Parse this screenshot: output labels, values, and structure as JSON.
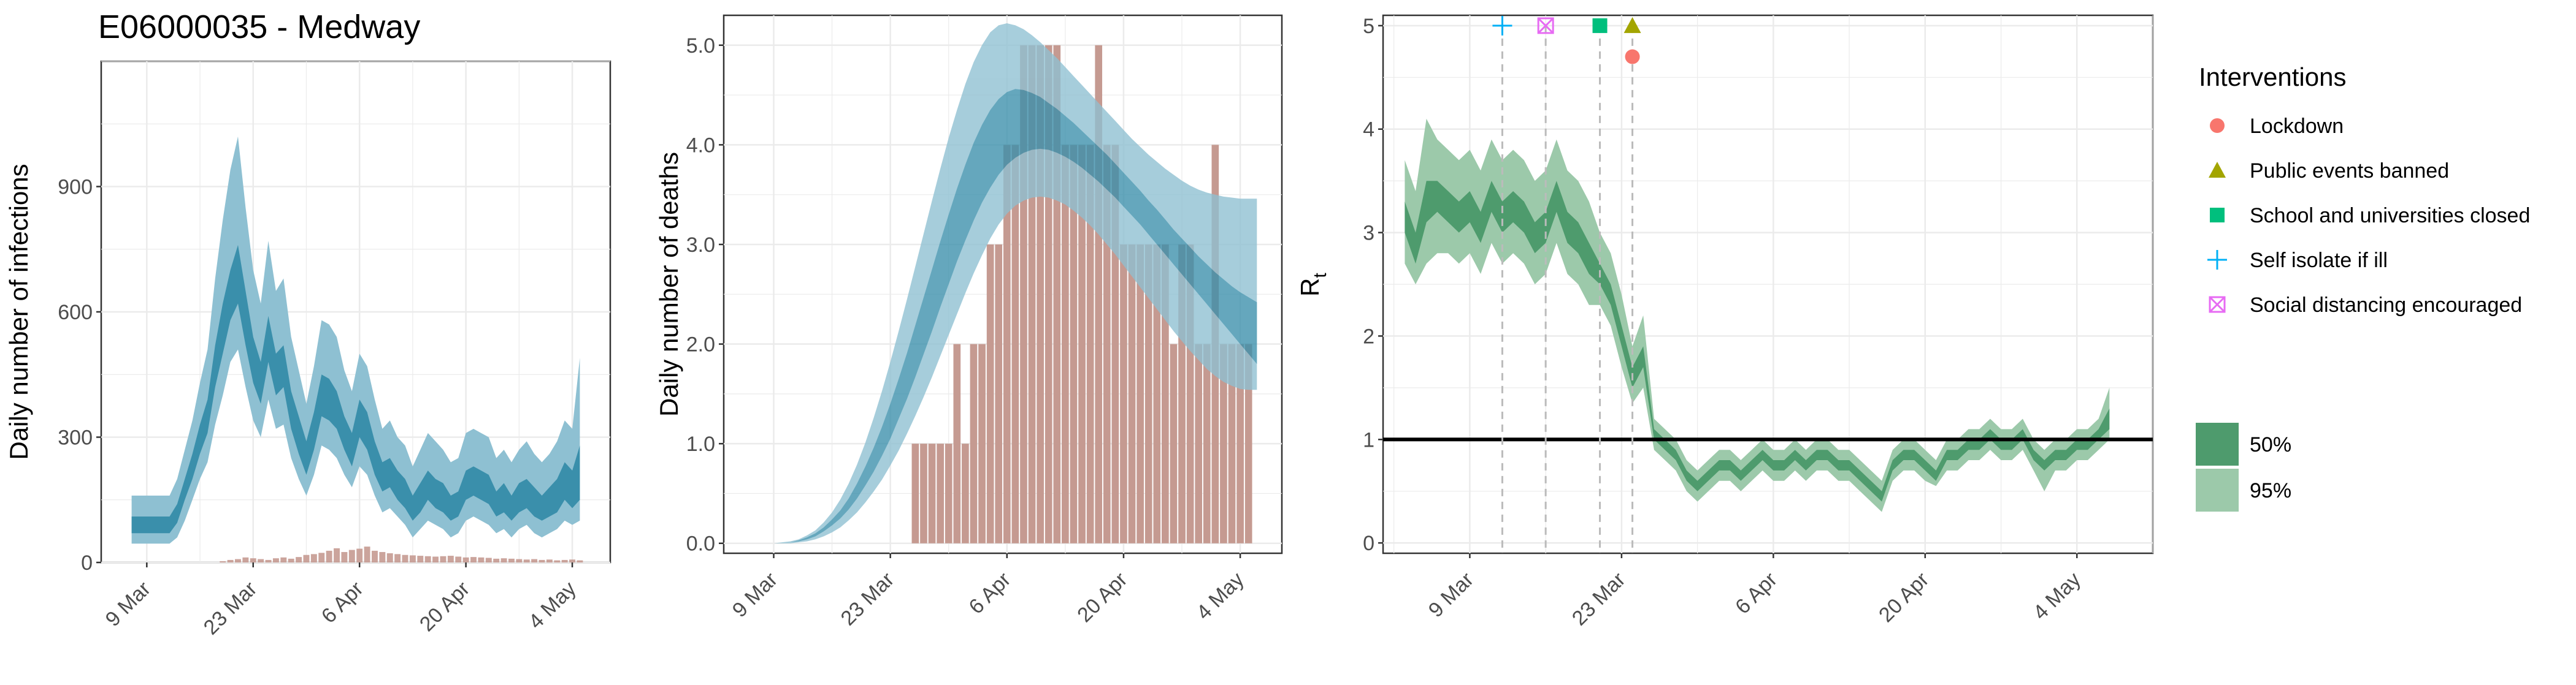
{
  "title": "E06000035 - Medway",
  "colors": {
    "infection_50": "#3a8fab",
    "infection_95": "#8ec0d2",
    "deaths_bar": "#c59a91",
    "rt_50": "#4e9b6d",
    "rt_95": "#9cc9aa",
    "lockdown": "#f8766d",
    "public_events": "#a3a500",
    "school": "#00bf7d",
    "self_isolate": "#00b0f6",
    "social_distancing": "#e76bf3"
  },
  "legend": {
    "title": "Interventions",
    "items": [
      {
        "label": "Lockdown",
        "shape": "circle",
        "color": "#f8766d"
      },
      {
        "label": "Public events banned",
        "shape": "triangle",
        "color": "#a3a500"
      },
      {
        "label": "School and universities closed",
        "shape": "square",
        "color": "#00bf7d"
      },
      {
        "label": "Self isolate if ill",
        "shape": "plus",
        "color": "#00b0f6"
      },
      {
        "label": "Social distancing encouraged",
        "shape": "boxx",
        "color": "#e76bf3"
      }
    ],
    "ci_items": [
      {
        "label": "50%",
        "color": "#4e9b6d"
      },
      {
        "label": "95%",
        "color": "#9cc9aa"
      }
    ]
  },
  "chart_data": [
    {
      "type": "area",
      "ylabel": "Daily number of infections",
      "xlabel": "",
      "xlim": [
        "2020-03-03",
        "2020-05-09"
      ],
      "ylim": [
        0,
        1200
      ],
      "x_ticks": [
        "2020-03-09",
        "2020-03-23",
        "2020-04-06",
        "2020-04-20",
        "2020-05-04"
      ],
      "x_tick_labels": [
        "9 Mar",
        "23 Mar",
        "6 Apr",
        "20 Apr",
        "4 May"
      ],
      "y_ticks": [
        0,
        300,
        600,
        900
      ],
      "y_tick_labels": [
        "0",
        "300",
        "600",
        "900"
      ],
      "start_date": "2020-03-07",
      "bands": {
        "p50_low": [
          70,
          70,
          70,
          70,
          70,
          70,
          95,
          150,
          200,
          260,
          310,
          420,
          500,
          580,
          620,
          520,
          430,
          380,
          480,
          400,
          420,
          320,
          260,
          210,
          270,
          350,
          340,
          320,
          270,
          230,
          300,
          270,
          210,
          170,
          180,
          150,
          130,
          100,
          120,
          150,
          130,
          120,
          100,
          110,
          150,
          160,
          150,
          140,
          110,
          120,
          100,
          120,
          130,
          110,
          100,
          110,
          120,
          150,
          130,
          150
        ],
        "p50_high": [
          110,
          110,
          110,
          110,
          110,
          110,
          140,
          200,
          260,
          330,
          390,
          520,
          620,
          700,
          760,
          650,
          540,
          480,
          590,
          500,
          520,
          410,
          350,
          290,
          360,
          450,
          440,
          410,
          350,
          310,
          390,
          360,
          290,
          240,
          250,
          220,
          200,
          160,
          190,
          220,
          200,
          190,
          160,
          170,
          220,
          230,
          220,
          210,
          170,
          190,
          160,
          190,
          200,
          180,
          160,
          180,
          200,
          240,
          220,
          280
        ],
        "p95_low": [
          45,
          45,
          45,
          45,
          45,
          45,
          60,
          100,
          150,
          200,
          240,
          330,
          400,
          480,
          510,
          420,
          340,
          300,
          390,
          320,
          330,
          250,
          200,
          160,
          210,
          280,
          270,
          250,
          210,
          180,
          230,
          210,
          160,
          120,
          130,
          110,
          90,
          60,
          80,
          100,
          90,
          80,
          60,
          70,
          100,
          110,
          100,
          90,
          70,
          80,
          60,
          80,
          90,
          70,
          60,
          70,
          80,
          100,
          90,
          100
        ],
        "p95_high": [
          160,
          160,
          160,
          160,
          160,
          160,
          200,
          270,
          340,
          430,
          510,
          680,
          820,
          940,
          1020,
          850,
          700,
          620,
          770,
          650,
          680,
          540,
          460,
          380,
          470,
          580,
          570,
          540,
          460,
          410,
          500,
          470,
          390,
          320,
          340,
          300,
          280,
          230,
          270,
          310,
          290,
          270,
          240,
          250,
          310,
          320,
          310,
          300,
          250,
          270,
          240,
          270,
          290,
          260,
          240,
          260,
          290,
          340,
          320,
          490
        ]
      },
      "observed_cases": {
        "start_date": "2020-03-07",
        "values": [
          0,
          0,
          0,
          0,
          0,
          0,
          0,
          0,
          0,
          0,
          0,
          0,
          3,
          6,
          8,
          12,
          10,
          8,
          6,
          10,
          12,
          9,
          13,
          18,
          20,
          23,
          28,
          34,
          25,
          30,
          33,
          38,
          28,
          25,
          22,
          20,
          18,
          17,
          16,
          15,
          14,
          15,
          16,
          14,
          12,
          13,
          12,
          11,
          9,
          10,
          9,
          8,
          7,
          8,
          6,
          7,
          5,
          6,
          7,
          5
        ]
      }
    },
    {
      "type": "bar",
      "ylabel": "Daily number of deaths",
      "xlabel": "",
      "xlim": [
        "2020-03-03",
        "2020-05-09"
      ],
      "ylim": [
        -0.1,
        5.3
      ],
      "x_ticks": [
        "2020-03-09",
        "2020-03-23",
        "2020-04-06",
        "2020-04-20",
        "2020-05-04"
      ],
      "x_tick_labels": [
        "9 Mar",
        "23 Mar",
        "6 Apr",
        "20 Apr",
        "4 May"
      ],
      "y_ticks": [
        0,
        1,
        2,
        3,
        4,
        5
      ],
      "y_tick_labels": [
        "0.0",
        "1.0",
        "2.0",
        "3.0",
        "4.0",
        "5.0"
      ],
      "observed_deaths": {
        "start_date": "2020-03-26",
        "values": [
          1,
          1,
          1,
          1,
          1,
          2,
          1,
          2,
          2,
          3,
          3,
          4,
          4,
          5,
          5,
          5,
          5,
          5,
          4,
          4,
          4,
          4,
          5,
          4,
          4,
          3,
          3,
          3,
          3,
          3,
          3,
          2,
          3,
          3,
          2,
          2,
          4,
          2,
          2,
          2,
          2
        ]
      },
      "bands": {
        "start_date": "2020-03-09",
        "p50_low": [
          0.0,
          0.0,
          0.01,
          0.02,
          0.04,
          0.07,
          0.12,
          0.18,
          0.25,
          0.34,
          0.45,
          0.58,
          0.72,
          0.88,
          1.05,
          1.25,
          1.45,
          1.67,
          1.9,
          2.13,
          2.37,
          2.6,
          2.83,
          3.04,
          3.24,
          3.42,
          3.57,
          3.7,
          3.8,
          3.87,
          3.92,
          3.95,
          3.96,
          3.95,
          3.92,
          3.88,
          3.83,
          3.77,
          3.7,
          3.63,
          3.55,
          3.47,
          3.38,
          3.29,
          3.2,
          3.1,
          3.0,
          2.9,
          2.8,
          2.7,
          2.6,
          2.5,
          2.4,
          2.3,
          2.2,
          2.1,
          2.0,
          1.9,
          1.8
        ],
        "p50_high": [
          0.0,
          0.0,
          0.01,
          0.03,
          0.06,
          0.1,
          0.16,
          0.24,
          0.33,
          0.45,
          0.6,
          0.77,
          0.96,
          1.17,
          1.4,
          1.65,
          1.91,
          2.19,
          2.47,
          2.75,
          3.03,
          3.3,
          3.56,
          3.8,
          4.02,
          4.2,
          4.35,
          4.46,
          4.53,
          4.56,
          4.55,
          4.52,
          4.48,
          4.42,
          4.36,
          4.29,
          4.22,
          4.14,
          4.06,
          3.98,
          3.9,
          3.81,
          3.72,
          3.63,
          3.54,
          3.44,
          3.35,
          3.25,
          3.15,
          3.06,
          2.97,
          2.88,
          2.8,
          2.72,
          2.65,
          2.58,
          2.52,
          2.47,
          2.42
        ],
        "p95_low": [
          0.0,
          0.0,
          0.0,
          0.01,
          0.02,
          0.04,
          0.07,
          0.11,
          0.16,
          0.23,
          0.31,
          0.41,
          0.52,
          0.64,
          0.78,
          0.93,
          1.1,
          1.28,
          1.47,
          1.67,
          1.88,
          2.09,
          2.3,
          2.51,
          2.71,
          2.89,
          3.06,
          3.2,
          3.31,
          3.39,
          3.44,
          3.47,
          3.48,
          3.47,
          3.44,
          3.4,
          3.34,
          3.27,
          3.19,
          3.1,
          3.0,
          2.9,
          2.79,
          2.68,
          2.57,
          2.46,
          2.35,
          2.24,
          2.13,
          2.03,
          1.93,
          1.84,
          1.75,
          1.68,
          1.62,
          1.58,
          1.55,
          1.54,
          1.54
        ],
        "p95_high": [
          0.0,
          0.01,
          0.02,
          0.04,
          0.08,
          0.13,
          0.21,
          0.31,
          0.44,
          0.6,
          0.79,
          1.01,
          1.26,
          1.53,
          1.82,
          2.13,
          2.45,
          2.78,
          3.11,
          3.44,
          3.76,
          4.07,
          4.35,
          4.61,
          4.83,
          5.0,
          5.13,
          5.2,
          5.22,
          5.2,
          5.16,
          5.1,
          5.03,
          4.95,
          4.87,
          4.78,
          4.69,
          4.6,
          4.51,
          4.42,
          4.33,
          4.24,
          4.15,
          4.06,
          3.98,
          3.9,
          3.83,
          3.76,
          3.7,
          3.64,
          3.59,
          3.55,
          3.52,
          3.5,
          3.48,
          3.47,
          3.46,
          3.46,
          3.46
        ]
      }
    },
    {
      "type": "area",
      "ylabel": "R",
      "ylabel_subscript": "t",
      "xlabel": "",
      "xlim": [
        "2020-03-01",
        "2020-05-11"
      ],
      "ylim": [
        -0.1,
        5.1
      ],
      "x_ticks": [
        "2020-03-09",
        "2020-03-23",
        "2020-04-06",
        "2020-04-20",
        "2020-05-04"
      ],
      "x_tick_labels": [
        "9 Mar",
        "23 Mar",
        "6 Apr",
        "20 Apr",
        "4 May"
      ],
      "y_ticks": [
        0,
        1,
        2,
        3,
        4,
        5
      ],
      "y_tick_labels": [
        "0",
        "1",
        "2",
        "3",
        "4",
        "5"
      ],
      "reference_line": 1,
      "start_date": "2020-03-03",
      "bands": {
        "p50_low": [
          3.0,
          2.7,
          3.1,
          3.2,
          3.1,
          3.0,
          3.1,
          2.9,
          3.2,
          3.0,
          3.1,
          3.0,
          2.8,
          2.9,
          3.2,
          2.9,
          2.8,
          2.6,
          2.5,
          2.3,
          1.9,
          1.5,
          1.7,
          1.0,
          0.9,
          0.8,
          0.6,
          0.5,
          0.6,
          0.7,
          0.7,
          0.6,
          0.7,
          0.8,
          0.7,
          0.7,
          0.8,
          0.7,
          0.8,
          0.8,
          0.7,
          0.7,
          0.6,
          0.5,
          0.4,
          0.7,
          0.8,
          0.8,
          0.7,
          0.6,
          0.8,
          0.8,
          0.9,
          0.9,
          1.0,
          0.9,
          0.9,
          1.0,
          0.8,
          0.7,
          0.8,
          0.8,
          0.9,
          0.9,
          1.0,
          1.1
        ],
        "p50_high": [
          3.3,
          3.0,
          3.5,
          3.5,
          3.4,
          3.3,
          3.4,
          3.2,
          3.5,
          3.3,
          3.4,
          3.3,
          3.1,
          3.2,
          3.5,
          3.2,
          3.1,
          2.9,
          2.7,
          2.5,
          2.1,
          1.7,
          1.9,
          1.1,
          1.0,
          0.9,
          0.7,
          0.6,
          0.7,
          0.8,
          0.8,
          0.7,
          0.8,
          0.9,
          0.8,
          0.8,
          0.9,
          0.8,
          0.9,
          0.9,
          0.8,
          0.8,
          0.7,
          0.6,
          0.5,
          0.8,
          0.9,
          0.9,
          0.8,
          0.7,
          0.9,
          0.9,
          1.0,
          1.0,
          1.1,
          1.0,
          1.0,
          1.1,
          0.9,
          0.8,
          0.9,
          0.9,
          1.0,
          1.0,
          1.1,
          1.3
        ],
        "p95_low": [
          2.7,
          2.5,
          2.7,
          2.8,
          2.8,
          2.7,
          2.8,
          2.6,
          2.9,
          2.7,
          2.8,
          2.7,
          2.5,
          2.6,
          2.9,
          2.6,
          2.5,
          2.3,
          2.3,
          2.1,
          1.7,
          1.35,
          1.5,
          0.9,
          0.8,
          0.7,
          0.5,
          0.4,
          0.5,
          0.6,
          0.6,
          0.5,
          0.6,
          0.7,
          0.6,
          0.6,
          0.7,
          0.6,
          0.7,
          0.7,
          0.6,
          0.6,
          0.5,
          0.4,
          0.3,
          0.6,
          0.7,
          0.7,
          0.6,
          0.55,
          0.7,
          0.7,
          0.8,
          0.8,
          0.9,
          0.8,
          0.8,
          0.9,
          0.7,
          0.5,
          0.7,
          0.7,
          0.8,
          0.8,
          0.9,
          1.0
        ],
        "p95_high": [
          3.7,
          3.4,
          4.1,
          3.9,
          3.8,
          3.7,
          3.8,
          3.6,
          3.9,
          3.7,
          3.8,
          3.7,
          3.5,
          3.6,
          3.9,
          3.6,
          3.5,
          3.3,
          3.0,
          2.8,
          2.4,
          1.9,
          2.2,
          1.2,
          1.1,
          1.0,
          0.8,
          0.7,
          0.8,
          0.9,
          0.9,
          0.8,
          0.9,
          1.0,
          0.9,
          0.9,
          1.0,
          0.9,
          1.0,
          1.0,
          0.9,
          0.9,
          0.8,
          0.7,
          0.6,
          0.9,
          1.0,
          1.0,
          0.9,
          0.8,
          1.0,
          1.0,
          1.1,
          1.1,
          1.2,
          1.1,
          1.1,
          1.2,
          1.0,
          0.9,
          1.0,
          1.0,
          1.1,
          1.1,
          1.2,
          1.5
        ]
      },
      "interventions": [
        {
          "name": "Self isolate if ill",
          "date": "2020-03-12",
          "shape": "plus",
          "y": 5.0
        },
        {
          "name": "Social distancing encouraged",
          "date": "2020-03-16",
          "shape": "boxx",
          "y": 5.0
        },
        {
          "name": "School and universities closed",
          "date": "2020-03-21",
          "shape": "square",
          "y": 5.0
        },
        {
          "name": "Public events banned",
          "date": "2020-03-24",
          "shape": "triangle",
          "y": 5.0
        },
        {
          "name": "Lockdown",
          "date": "2020-03-24",
          "shape": "circle",
          "y": 4.7
        }
      ]
    }
  ]
}
